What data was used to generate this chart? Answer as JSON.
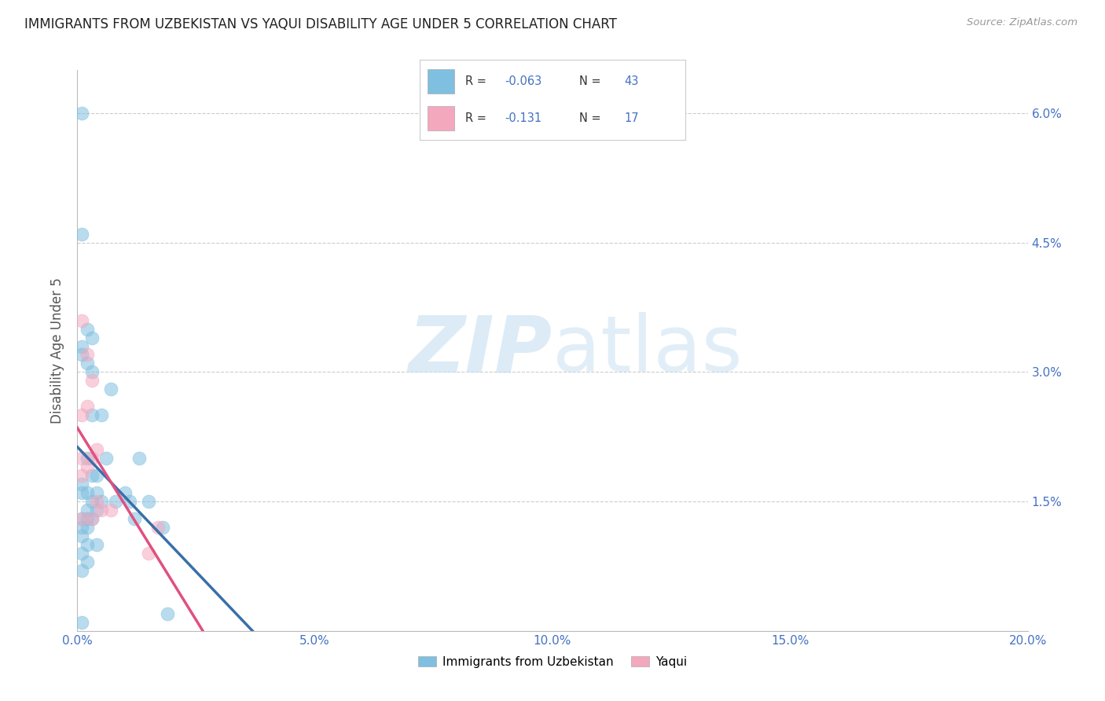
{
  "title": "IMMIGRANTS FROM UZBEKISTAN VS YAQUI DISABILITY AGE UNDER 5 CORRELATION CHART",
  "source": "Source: ZipAtlas.com",
  "ylabel": "Disability Age Under 5",
  "legend_label1": "Immigrants from Uzbekistan",
  "legend_label2": "Yaqui",
  "R1": -0.063,
  "N1": 43,
  "R2": -0.131,
  "N2": 17,
  "xlim": [
    0.0,
    0.2
  ],
  "ylim": [
    0.0,
    0.065
  ],
  "xticks": [
    0.0,
    0.05,
    0.1,
    0.15,
    0.2
  ],
  "xtick_labels": [
    "0.0%",
    "5.0%",
    "10.0%",
    "15.0%",
    "20.0%"
  ],
  "yticks": [
    0.0,
    0.015,
    0.03,
    0.045,
    0.06
  ],
  "ytick_labels": [
    "",
    "1.5%",
    "3.0%",
    "4.5%",
    "6.0%"
  ],
  "color_blue": "#7fbfdf",
  "color_pink": "#f4a8be",
  "color_blue_line": "#3a6fa8",
  "color_pink_line": "#e05080",
  "bg_color": "#ffffff",
  "watermark_zip": "ZIP",
  "watermark_atlas": "atlas",
  "blue_x": [
    0.001,
    0.001,
    0.001,
    0.001,
    0.001,
    0.001,
    0.001,
    0.001,
    0.002,
    0.002,
    0.002,
    0.002,
    0.002,
    0.002,
    0.002,
    0.003,
    0.003,
    0.003,
    0.003,
    0.003,
    0.004,
    0.004,
    0.004,
    0.005,
    0.005,
    0.006,
    0.007,
    0.008,
    0.01,
    0.011,
    0.012,
    0.013,
    0.015,
    0.018,
    0.019,
    0.001,
    0.002,
    0.003,
    0.004,
    0.001,
    0.002,
    0.001,
    0.001
  ],
  "blue_y": [
    0.06,
    0.033,
    0.032,
    0.017,
    0.016,
    0.013,
    0.012,
    0.011,
    0.035,
    0.031,
    0.02,
    0.016,
    0.014,
    0.013,
    0.01,
    0.034,
    0.03,
    0.018,
    0.015,
    0.013,
    0.016,
    0.014,
    0.01,
    0.025,
    0.015,
    0.02,
    0.028,
    0.015,
    0.016,
    0.015,
    0.013,
    0.02,
    0.015,
    0.012,
    0.002,
    0.046,
    0.012,
    0.025,
    0.018,
    0.009,
    0.008,
    0.007,
    0.001
  ],
  "pink_x": [
    0.001,
    0.001,
    0.001,
    0.001,
    0.001,
    0.002,
    0.002,
    0.002,
    0.003,
    0.003,
    0.003,
    0.004,
    0.004,
    0.005,
    0.007,
    0.015,
    0.017
  ],
  "pink_y": [
    0.036,
    0.025,
    0.02,
    0.018,
    0.013,
    0.032,
    0.026,
    0.019,
    0.029,
    0.02,
    0.013,
    0.021,
    0.015,
    0.014,
    0.014,
    0.009,
    0.012
  ],
  "blue_line_x_end": 0.1,
  "blue_line_intercept": 0.0185,
  "blue_line_slope": -0.012,
  "pink_line_intercept": 0.02,
  "pink_line_slope": -0.045
}
